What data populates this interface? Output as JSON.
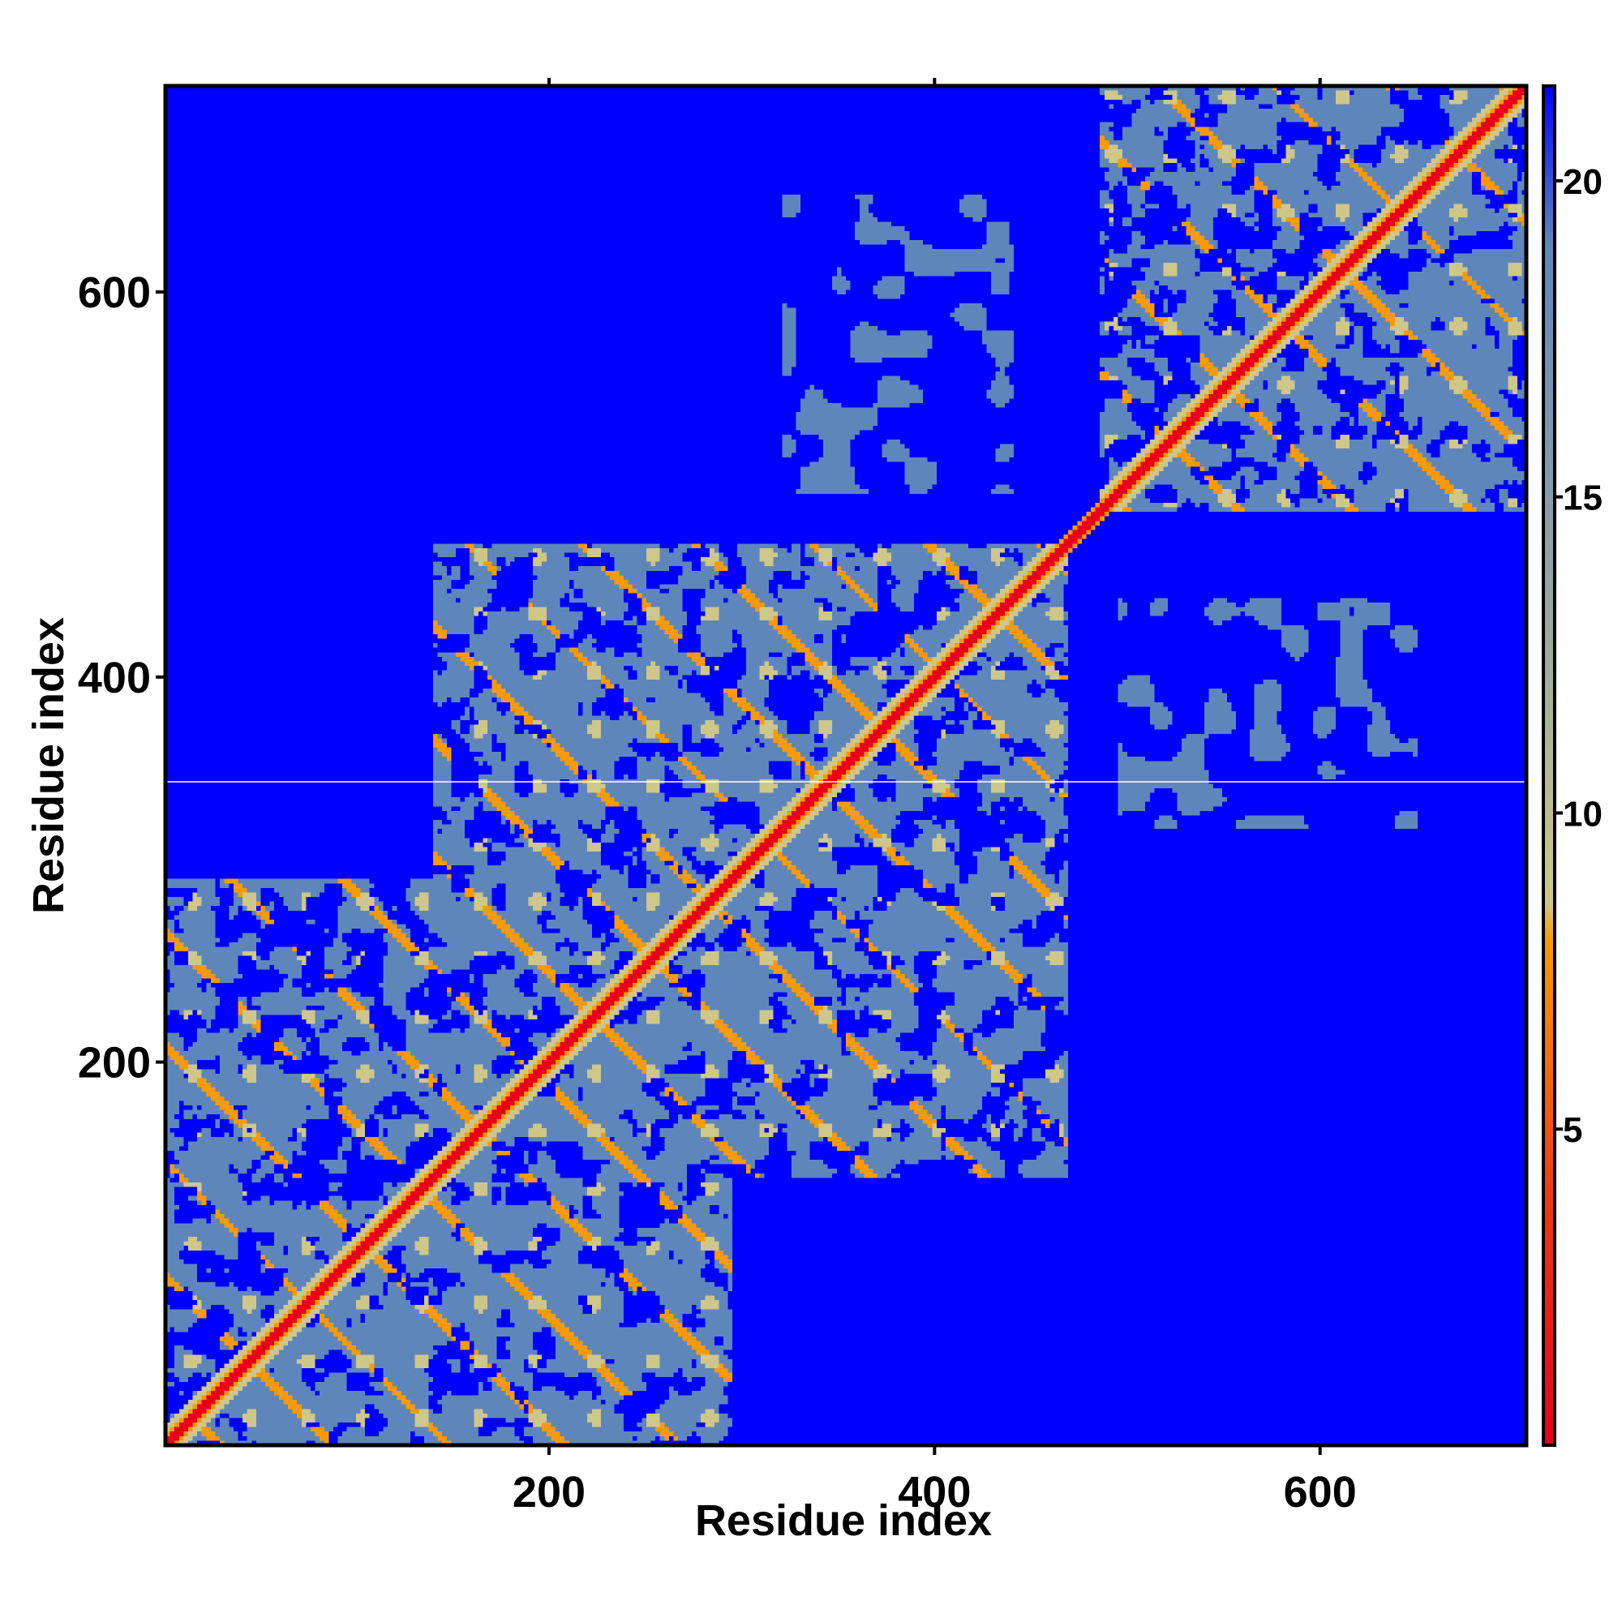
{
  "chart_data": {
    "type": "heatmap",
    "title": "",
    "xlabel": "Residue index",
    "ylabel": "Residue index",
    "xlim": [
      1,
      707
    ],
    "ylim": [
      1,
      707
    ],
    "x_ticks": [
      200,
      400,
      600
    ],
    "y_ticks": [
      200,
      400,
      600
    ],
    "x_tick_labels": [
      "200",
      "400",
      "600"
    ],
    "y_tick_labels": [
      "200",
      "400",
      "600"
    ],
    "grid": false,
    "colorbar": {
      "placement": "right",
      "range": [
        0,
        21.5
      ],
      "ticks": [
        5,
        10,
        15,
        20
      ],
      "tick_labels": [
        "5",
        "10",
        "15",
        "20"
      ],
      "stops": [
        {
          "value": 0,
          "color": "#e8001a"
        },
        {
          "value": 4,
          "color": "#ef3a12"
        },
        {
          "value": 6,
          "color": "#f36a10"
        },
        {
          "value": 8,
          "color": "#f79a08"
        },
        {
          "value": 8.6,
          "color": "#cfc789"
        },
        {
          "value": 12,
          "color": "#a3ae9b"
        },
        {
          "value": 16,
          "color": "#7c97ae"
        },
        {
          "value": 19,
          "color": "#5f86bb"
        },
        {
          "value": 21.5,
          "color": "#0000ff"
        }
      ]
    },
    "domains": [
      {
        "name": "",
        "start": 1,
        "end": 295
      },
      {
        "name": "",
        "start": 140,
        "end": 470
      },
      {
        "name": "",
        "start": 485,
        "end": 707
      }
    ],
    "colors": {
      "background": "#0000ff",
      "contact": "#5f86bb",
      "near": "#cfc789",
      "diagonal": "#e8001a",
      "frame": "#000000"
    }
  }
}
